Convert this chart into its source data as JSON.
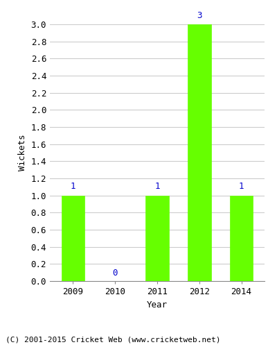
{
  "years": [
    "2009",
    "2010",
    "2011",
    "2012",
    "2014"
  ],
  "values": [
    1,
    0,
    1,
    3,
    1
  ],
  "bar_color": "#66ff00",
  "bar_edgecolor": "#66ff00",
  "label_color": "#0000cc",
  "xlabel": "Year",
  "ylabel": "Wickets",
  "ylim": [
    0.0,
    3.0
  ],
  "yticks": [
    0.0,
    0.2,
    0.4,
    0.6,
    0.8,
    1.0,
    1.2,
    1.4,
    1.6,
    1.8,
    2.0,
    2.2,
    2.4,
    2.6,
    2.8,
    3.0
  ],
  "footnote": "(C) 2001-2015 Cricket Web (www.cricketweb.net)",
  "footnote_color": "#000000",
  "background_color": "#ffffff",
  "grid_color": "#cccccc",
  "bar_width": 0.55,
  "tick_fontsize": 9,
  "label_fontsize": 9,
  "annot_fontsize": 9,
  "footnote_fontsize": 8
}
